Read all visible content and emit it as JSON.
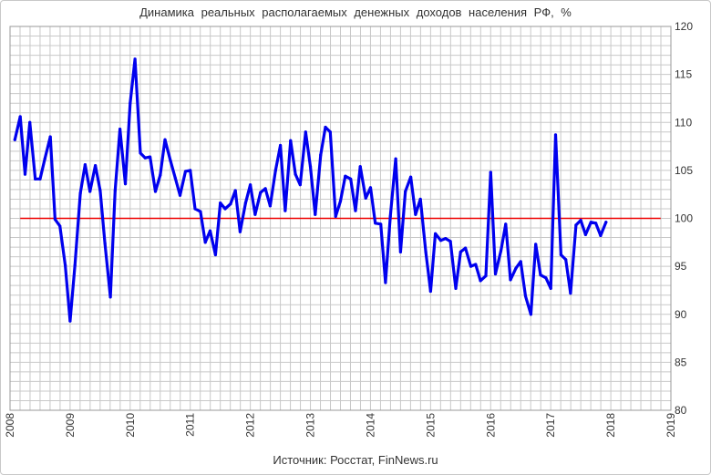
{
  "chart_data": {
    "type": "line",
    "title": "Динамика реальных располагаемых денежных доходов населения РФ, %",
    "source": "Источник: Росстат, FinNews.ru",
    "xlim": [
      2008,
      2019
    ],
    "ylim": [
      80,
      120
    ],
    "x_ticks": [
      "2008",
      "2009",
      "2010",
      "2011",
      "2012",
      "2013",
      "2014",
      "2015",
      "2016",
      "2017",
      "2018",
      "2019"
    ],
    "y_ticks": [
      "80",
      "85",
      "90",
      "95",
      "100",
      "105",
      "110",
      "115",
      "120"
    ],
    "grid": true,
    "colors": {
      "series": "#0000ee",
      "reference": "#ee0000",
      "grid": "#c8c8c8"
    },
    "reference_line": {
      "y": 100,
      "x_from": 2008.17,
      "x_to": 2018.83
    },
    "series": [
      {
        "x": [
          2008.08,
          2008.17,
          2008.25,
          2008.33,
          2008.42,
          2008.5,
          2008.58,
          2008.67,
          2008.75,
          2008.83,
          2008.92,
          2009.0,
          2009.08,
          2009.17,
          2009.25,
          2009.33,
          2009.42,
          2009.5,
          2009.58,
          2009.67,
          2009.75,
          2009.83,
          2009.92,
          2010.0,
          2010.08,
          2010.17,
          2010.25,
          2010.33,
          2010.42,
          2010.5,
          2010.58,
          2010.67,
          2010.75,
          2010.83,
          2010.92,
          2011.0,
          2011.08,
          2011.17,
          2011.25,
          2011.33,
          2011.42,
          2011.5,
          2011.58,
          2011.67,
          2011.75,
          2011.83,
          2011.92,
          2012.0,
          2012.08,
          2012.17,
          2012.25,
          2012.33,
          2012.42,
          2012.5,
          2012.58,
          2012.67,
          2012.75,
          2012.83,
          2012.92,
          2013.0,
          2013.08,
          2013.17,
          2013.25,
          2013.33,
          2013.42,
          2013.5,
          2013.58,
          2013.67,
          2013.75,
          2013.83,
          2013.92,
          2014.0,
          2014.08,
          2014.17,
          2014.25,
          2014.33,
          2014.42,
          2014.5,
          2014.58,
          2014.67,
          2014.75,
          2014.83,
          2014.92,
          2015.0,
          2015.08,
          2015.17,
          2015.25,
          2015.33,
          2015.42,
          2015.5,
          2015.58,
          2015.67,
          2015.75,
          2015.83,
          2015.92,
          2016.0,
          2016.08,
          2016.17,
          2016.25,
          2016.33,
          2016.42,
          2016.5,
          2016.58,
          2016.67,
          2016.75,
          2016.83,
          2016.92,
          2017.0,
          2017.08,
          2017.17,
          2017.25,
          2017.33,
          2017.42,
          2017.5,
          2017.58,
          2017.67,
          2017.75,
          2017.83,
          2017.92
        ],
        "y": [
          108.2,
          110.6,
          104.6,
          110.0,
          104.1,
          104.1,
          106.2,
          108.5,
          99.9,
          99.2,
          95.1,
          89.3,
          95.1,
          102.6,
          105.6,
          102.8,
          105.5,
          102.9,
          97.4,
          91.8,
          102.9,
          109.3,
          103.6,
          112.0,
          116.6,
          106.8,
          106.3,
          106.4,
          102.8,
          104.5,
          108.2,
          106.0,
          104.2,
          102.4,
          104.9,
          105.0,
          101.0,
          100.7,
          97.5,
          98.7,
          96.2,
          101.6,
          101.0,
          101.5,
          102.9,
          98.6,
          101.6,
          103.5,
          100.4,
          102.7,
          103.1,
          101.3,
          105.0,
          107.6,
          100.8,
          108.1,
          104.6,
          103.5,
          109.0,
          105.4,
          100.4,
          106.6,
          109.5,
          109.0,
          100.2,
          101.8,
          104.4,
          104.1,
          100.8,
          105.4,
          102.1,
          103.2,
          99.5,
          99.4,
          93.3,
          100.2,
          106.2,
          96.5,
          102.8,
          104.3,
          100.4,
          102.0,
          96.5,
          92.4,
          98.4,
          97.7,
          97.9,
          97.6,
          92.7,
          96.5,
          96.9,
          95.0,
          95.2,
          93.5,
          94.0,
          104.8,
          94.2,
          96.6,
          99.4,
          93.6,
          94.8,
          95.5,
          91.9,
          90.0,
          97.3,
          94.1,
          93.8,
          92.7,
          108.7,
          96.2,
          95.7,
          92.2,
          99.3,
          99.8,
          98.3,
          99.6,
          99.5,
          98.2,
          99.6
        ]
      }
    ]
  }
}
